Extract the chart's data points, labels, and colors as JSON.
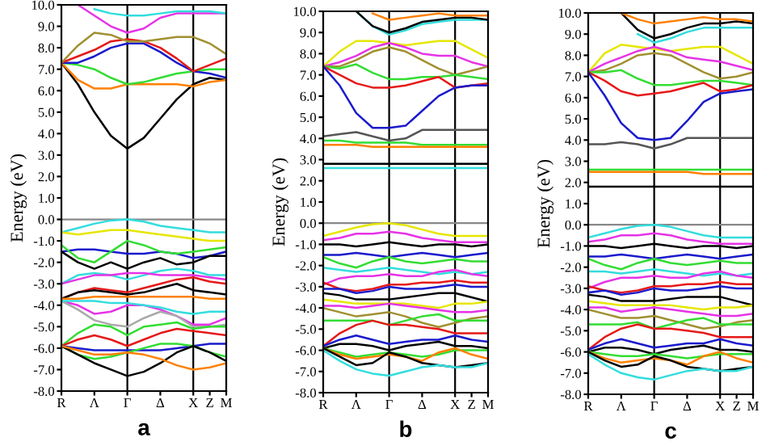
{
  "chart_data": [
    {
      "type": "line",
      "xlabel": "a",
      "ylabel": "Energy (eV)",
      "line_style": "solid",
      "categories": [
        "R",
        null,
        "Λ",
        null,
        "Γ",
        null,
        "Δ",
        null,
        "X",
        "Z",
        "M"
      ],
      "ylim": [
        -8,
        10
      ],
      "yticks": [
        {
          "value": -8,
          "label": "-8.0"
        },
        {
          "value": -7,
          "label": "-7.0"
        },
        {
          "value": -6,
          "label": "-6.0"
        },
        {
          "value": -5,
          "label": "-5.0"
        },
        {
          "value": -4,
          "label": "-4.0"
        },
        {
          "value": -3,
          "label": "-3.0"
        },
        {
          "value": -2,
          "label": "-2.0"
        },
        {
          "value": -1,
          "label": "-1.0"
        },
        {
          "value": 0,
          "label": "0.0"
        },
        {
          "value": 1,
          "label": "1.0"
        },
        {
          "value": 2,
          "label": "2.0"
        },
        {
          "value": 3,
          "label": "3.0"
        },
        {
          "value": 4,
          "label": "4.0"
        },
        {
          "value": 5,
          "label": "5.0"
        },
        {
          "value": 6,
          "label": "6.0"
        },
        {
          "value": 7,
          "label": "7.0"
        },
        {
          "value": 8,
          "label": "8.0"
        },
        {
          "value": 9,
          "label": "9.0"
        },
        {
          "value": 10,
          "label": "10.0"
        }
      ],
      "ref_lines": [
        {
          "axis": "x",
          "value": "Γ",
          "color": "#000000"
        },
        {
          "axis": "x",
          "value": "X",
          "color": "#000000"
        },
        {
          "axis": "y",
          "value": 0,
          "color": "#888888"
        }
      ],
      "series": [
        {
          "color": "#000000",
          "values": [
            7.3,
            6.3,
            5.0,
            3.9,
            3.3,
            3.8,
            4.7,
            5.6,
            6.3,
            6.6,
            6.5
          ]
        },
        {
          "color": "#ff8000",
          "values": [
            7.3,
            6.5,
            6.1,
            6.1,
            6.3,
            6.3,
            6.3,
            6.3,
            6.2,
            6.4,
            6.5
          ]
        },
        {
          "color": "#33dd33",
          "values": [
            7.3,
            7.2,
            7.0,
            6.6,
            6.3,
            6.4,
            6.6,
            6.8,
            6.9,
            7.0,
            7.0
          ]
        },
        {
          "color": "#1a1acc",
          "values": [
            7.3,
            7.3,
            7.6,
            8.0,
            8.2,
            8.2,
            7.8,
            7.3,
            6.9,
            6.8,
            6.6
          ]
        },
        {
          "color": "#e61919",
          "values": [
            7.3,
            7.6,
            7.9,
            8.3,
            8.4,
            8.3,
            8.0,
            7.5,
            6.9,
            7.2,
            7.5
          ]
        },
        {
          "color": "#a09030",
          "values": [
            7.3,
            8.1,
            8.7,
            8.6,
            8.3,
            8.3,
            8.4,
            8.5,
            8.5,
            8.2,
            7.7
          ]
        },
        {
          "color": "#e633e6",
          "values": [
            null,
            10.0,
            9.5,
            9.0,
            8.7,
            8.9,
            9.4,
            9.6,
            9.6,
            9.6,
            9.6
          ]
        },
        {
          "color": "#33dddd",
          "values": [
            null,
            null,
            9.8,
            9.6,
            9.5,
            9.5,
            9.6,
            9.7,
            9.7,
            9.7,
            9.6
          ]
        },
        {
          "color": "#33dddd",
          "values": [
            -0.6,
            -0.4,
            -0.2,
            -0.05,
            0.0,
            -0.1,
            -0.3,
            -0.4,
            -0.5,
            -0.6,
            -0.6
          ]
        },
        {
          "color": "#e6e600",
          "values": [
            -0.6,
            -0.7,
            -0.6,
            -0.5,
            -0.5,
            -0.6,
            -0.7,
            -0.8,
            -0.9,
            -1.0,
            -1.0
          ]
        },
        {
          "color": "#1a1acc",
          "values": [
            -1.5,
            -1.4,
            -1.4,
            -1.5,
            -1.6,
            -1.6,
            -1.5,
            -1.6,
            -1.8,
            -1.7,
            -1.5
          ]
        },
        {
          "color": "#000000",
          "values": [
            -1.5,
            -2.0,
            -2.3,
            -2.0,
            -2.3,
            -2.0,
            -1.8,
            -2.1,
            -2.0,
            -1.7,
            -1.7
          ]
        },
        {
          "color": "#33dd33",
          "values": [
            -1.2,
            -1.8,
            -2.0,
            -1.5,
            -1.0,
            -1.2,
            -1.5,
            -1.6,
            -1.5,
            -1.4,
            -1.3
          ]
        },
        {
          "color": "#33dddd",
          "values": [
            -3.0,
            -2.6,
            -2.5,
            -2.6,
            -2.8,
            -2.6,
            -2.4,
            -2.3,
            -2.4,
            -2.6,
            -2.6
          ]
        },
        {
          "color": "#e633e6",
          "values": [
            -3.0,
            -2.8,
            -2.6,
            -2.6,
            -2.5,
            -2.5,
            -2.6,
            -2.6,
            -2.6,
            -2.7,
            -2.8
          ]
        },
        {
          "color": "#e61919",
          "values": [
            -3.7,
            -3.4,
            -3.2,
            -3.3,
            -3.4,
            -3.2,
            -3.0,
            -2.8,
            -2.7,
            -2.9,
            -3.0
          ]
        },
        {
          "color": "#000000",
          "values": [
            -3.7,
            -3.4,
            -3.3,
            -3.4,
            -3.5,
            -3.4,
            -3.2,
            -3.0,
            -3.3,
            -3.4,
            -3.5
          ]
        },
        {
          "color": "#ff8000",
          "values": [
            -3.7,
            -3.7,
            -3.6,
            -3.6,
            -3.6,
            -3.6,
            -3.6,
            -3.6,
            -3.6,
            -3.7,
            -3.7
          ]
        },
        {
          "color": "#e633e6",
          "values": [
            -3.8,
            -4.0,
            -4.4,
            -4.3,
            -4.0,
            -4.0,
            -4.2,
            -4.5,
            -4.9,
            -4.9,
            -4.6
          ]
        },
        {
          "color": "#aaaaaa",
          "values": [
            -3.8,
            -4.2,
            -4.7,
            -4.9,
            -5.0,
            -4.6,
            -4.3,
            -4.5,
            -5.0,
            -5.0,
            -4.9
          ]
        },
        {
          "color": "#33dddd",
          "values": [
            -3.8,
            -3.8,
            -3.8,
            -3.9,
            -3.9,
            -4.0,
            -4.1,
            -4.3,
            -4.4,
            -4.3,
            -4.3
          ]
        },
        {
          "color": "#33dd33",
          "values": [
            -5.9,
            -5.3,
            -4.9,
            -5.0,
            -5.4,
            -5.0,
            -4.9,
            -4.8,
            -5.1,
            -5.0,
            -5.0
          ]
        },
        {
          "color": "#e61919",
          "values": [
            -5.9,
            -5.6,
            -5.4,
            -5.6,
            -5.9,
            -5.6,
            -5.3,
            -5.1,
            -5.2,
            -5.3,
            -5.4
          ]
        },
        {
          "color": "#1a1acc",
          "values": [
            -5.9,
            -6.0,
            -6.1,
            -6.1,
            -6.1,
            -6.1,
            -6.1,
            -6.0,
            -5.9,
            -5.8,
            -5.8
          ]
        },
        {
          "color": "#33dd33",
          "values": [
            -5.9,
            -6.3,
            -6.5,
            -6.4,
            -6.2,
            -6.0,
            -5.8,
            -5.8,
            -5.9,
            -6.2,
            -6.4
          ]
        },
        {
          "color": "#000000",
          "values": [
            -5.9,
            -6.3,
            -6.7,
            -7.0,
            -7.3,
            -7.1,
            -6.7,
            -6.2,
            -5.9,
            -6.2,
            -6.6
          ]
        },
        {
          "color": "#ff8000",
          "values": [
            -5.9,
            -6.1,
            -6.3,
            -6.3,
            -6.2,
            -6.3,
            -6.5,
            -6.8,
            -7.0,
            -6.9,
            -6.7
          ]
        }
      ]
    },
    {
      "type": "line",
      "xlabel": "b",
      "ylabel": "Energy (eV)",
      "line_style": "solid",
      "categories": [
        "R",
        null,
        "Λ",
        null,
        "Γ",
        null,
        "Δ",
        null,
        "X",
        "Z",
        "M"
      ],
      "ylim": [
        -8,
        10
      ],
      "yticks": [
        {
          "value": -8,
          "label": "-8.0"
        },
        {
          "value": -7,
          "label": "-7.0"
        },
        {
          "value": -6,
          "label": "-6.0"
        },
        {
          "value": -5,
          "label": "-5.0"
        },
        {
          "value": -4,
          "label": "-4.0"
        },
        {
          "value": -3,
          "label": "-3.0"
        },
        {
          "value": -2,
          "label": "-2.0"
        },
        {
          "value": -1,
          "label": "-1.0"
        },
        {
          "value": 0,
          "label": "0.0"
        },
        {
          "value": 1,
          "label": "1.0"
        },
        {
          "value": 2,
          "label": "2.0"
        },
        {
          "value": 3,
          "label": "3.0"
        },
        {
          "value": 4,
          "label": "4.0"
        },
        {
          "value": 5,
          "label": "5.0"
        },
        {
          "value": 6,
          "label": "6.0"
        },
        {
          "value": 7,
          "label": "7.0"
        },
        {
          "value": 8,
          "label": "8.0"
        },
        {
          "value": 9,
          "label": "9.0"
        },
        {
          "value": 10,
          "label": "10.0"
        }
      ],
      "ref_lines": [
        {
          "axis": "x",
          "value": "Γ",
          "color": "#000000"
        },
        {
          "axis": "x",
          "value": "X",
          "color": "#000000"
        },
        {
          "axis": "y",
          "value": 0,
          "color": "#888888"
        }
      ],
      "series": [
        {
          "color": "#33dddd",
          "values": [
            null,
            null,
            10.0,
            9.3,
            8.9,
            9.1,
            9.4,
            9.5,
            9.6,
            9.6,
            9.6
          ]
        },
        {
          "color": "#000000",
          "values": [
            null,
            null,
            10.0,
            9.3,
            9.0,
            9.2,
            9.5,
            9.6,
            9.7,
            9.7,
            9.6
          ]
        },
        {
          "color": "#ff8000",
          "values": [
            null,
            null,
            null,
            9.9,
            9.6,
            9.7,
            9.8,
            9.9,
            9.8,
            9.8,
            9.8
          ]
        },
        {
          "color": "#e6e600",
          "values": [
            7.4,
            8.1,
            8.6,
            8.6,
            8.5,
            8.4,
            8.5,
            8.6,
            8.6,
            8.2,
            7.8
          ]
        },
        {
          "color": "#e633e6",
          "values": [
            7.4,
            7.6,
            7.9,
            8.3,
            8.5,
            8.3,
            8.0,
            7.9,
            7.9,
            7.6,
            7.4
          ]
        },
        {
          "color": "#a09030",
          "values": [
            7.4,
            7.4,
            7.7,
            8.1,
            8.3,
            8.1,
            7.7,
            7.3,
            7.0,
            7.2,
            7.4
          ]
        },
        {
          "color": "#33dd33",
          "values": [
            7.4,
            7.3,
            7.5,
            7.1,
            6.8,
            6.8,
            6.9,
            6.9,
            7.0,
            6.9,
            6.8
          ]
        },
        {
          "color": "#e61919",
          "values": [
            7.4,
            7.0,
            6.6,
            6.4,
            6.4,
            6.5,
            6.7,
            6.9,
            6.4,
            6.5,
            6.6
          ]
        },
        {
          "color": "#1a1acc",
          "values": [
            7.4,
            6.5,
            5.2,
            4.5,
            4.5,
            4.6,
            5.3,
            6.0,
            6.4,
            6.5,
            6.5
          ]
        },
        {
          "color": "#555555",
          "values": [
            4.1,
            4.2,
            4.3,
            4.1,
            3.9,
            4.0,
            4.4,
            4.4,
            4.4,
            4.4,
            4.4
          ]
        },
        {
          "color": "#33dd33",
          "values": [
            3.9,
            3.9,
            3.8,
            3.8,
            3.8,
            3.8,
            3.7,
            3.7,
            3.7,
            3.7,
            3.7
          ]
        },
        {
          "color": "#ff8000",
          "values": [
            3.7,
            3.7,
            3.7,
            3.6,
            3.6,
            3.6,
            3.6,
            3.6,
            3.6,
            3.6,
            3.6
          ]
        },
        {
          "color": "#000000",
          "values": [
            2.8,
            2.8,
            2.8,
            2.8,
            2.8,
            2.8,
            2.8,
            2.8,
            2.8,
            2.8,
            2.8
          ]
        },
        {
          "color": "#33dddd",
          "values": [
            2.6,
            2.6,
            2.6,
            2.6,
            2.6,
            2.6,
            2.6,
            2.6,
            2.6,
            2.6,
            2.6
          ]
        },
        {
          "color": "#e6e600",
          "values": [
            -0.6,
            -0.4,
            -0.2,
            -0.05,
            0.0,
            -0.1,
            -0.3,
            -0.5,
            -0.6,
            -0.6,
            -0.6
          ]
        },
        {
          "color": "#e633e6",
          "values": [
            -0.8,
            -0.7,
            -0.5,
            -0.5,
            -0.4,
            -0.5,
            -0.7,
            -0.8,
            -0.9,
            -0.9,
            -0.9
          ]
        },
        {
          "color": "#000000",
          "values": [
            -1.0,
            -1.0,
            -1.1,
            -1.0,
            -0.9,
            -1.0,
            -1.1,
            -1.0,
            -1.0,
            -1.1,
            -1.0
          ]
        },
        {
          "color": "#1a1acc",
          "values": [
            -1.5,
            -1.5,
            -1.4,
            -1.5,
            -1.6,
            -1.5,
            -1.4,
            -1.5,
            -1.6,
            -1.5,
            -1.4
          ]
        },
        {
          "color": "#33dd33",
          "values": [
            -1.6,
            -1.9,
            -2.1,
            -1.8,
            -1.6,
            -1.8,
            -1.9,
            -1.8,
            -1.7,
            -1.8,
            -1.8
          ]
        },
        {
          "color": "#33dddd",
          "values": [
            -2.1,
            -2.2,
            -2.3,
            -2.2,
            -2.1,
            -2.2,
            -2.3,
            -2.4,
            -2.3,
            -2.4,
            -2.3
          ]
        },
        {
          "color": "#e633e6",
          "values": [
            -2.9,
            -2.6,
            -2.5,
            -2.5,
            -2.4,
            -2.5,
            -2.5,
            -2.3,
            -2.2,
            -2.4,
            -2.5
          ]
        },
        {
          "color": "#e61919",
          "values": [
            -2.8,
            -3.1,
            -3.2,
            -3.1,
            -2.9,
            -2.9,
            -2.8,
            -2.8,
            -2.7,
            -2.8,
            -2.8
          ]
        },
        {
          "color": "#1a1acc",
          "values": [
            -3.1,
            -3.1,
            -3.3,
            -3.2,
            -3.0,
            -3.1,
            -3.1,
            -3.0,
            -2.9,
            -3.0,
            -3.0
          ]
        },
        {
          "color": "#000000",
          "values": [
            -3.3,
            -3.4,
            -3.6,
            -3.6,
            -3.6,
            -3.5,
            -3.4,
            -3.3,
            -3.3,
            -3.5,
            -3.7
          ]
        },
        {
          "color": "#e6e600",
          "values": [
            -3.6,
            -3.7,
            -3.8,
            -3.8,
            -3.8,
            -3.8,
            -3.9,
            -4.0,
            -3.8,
            -3.8,
            -3.7
          ]
        },
        {
          "color": "#e633e6",
          "values": [
            -3.9,
            -3.9,
            -4.0,
            -3.9,
            -3.8,
            -3.9,
            -4.0,
            -4.1,
            -4.2,
            -4.2,
            -4.1
          ]
        },
        {
          "color": "#a09030",
          "values": [
            -4.0,
            -4.2,
            -4.4,
            -4.3,
            -4.2,
            -4.4,
            -4.7,
            -4.9,
            -4.7,
            -4.5,
            -4.4
          ]
        },
        {
          "color": "#33dd33",
          "values": [
            -4.6,
            -4.6,
            -4.6,
            -4.6,
            -4.8,
            -4.6,
            -4.4,
            -4.3,
            -4.6,
            -4.6,
            -4.6
          ]
        },
        {
          "color": "#e61919",
          "values": [
            -5.8,
            -5.2,
            -4.8,
            -4.6,
            -4.8,
            -4.8,
            -4.9,
            -5.0,
            -5.2,
            -5.2,
            -5.2
          ]
        },
        {
          "color": "#1a1acc",
          "values": [
            -5.8,
            -5.5,
            -5.3,
            -5.5,
            -5.7,
            -5.6,
            -5.5,
            -5.5,
            -5.3,
            -5.5,
            -5.6
          ]
        },
        {
          "color": "#000000",
          "values": [
            -5.9,
            -5.7,
            -5.7,
            -5.8,
            -6.0,
            -5.8,
            -5.7,
            -5.6,
            -5.8,
            -5.8,
            -5.9
          ]
        },
        {
          "color": "#33dd33",
          "values": [
            -5.9,
            -6.1,
            -6.3,
            -6.2,
            -6.1,
            -6.2,
            -6.3,
            -6.2,
            -6.0,
            -6.0,
            -6.0
          ]
        },
        {
          "color": "#ff8000",
          "values": [
            -5.9,
            -6.2,
            -6.4,
            -6.3,
            -6.2,
            -6.3,
            -6.5,
            -6.1,
            -5.9,
            -6.2,
            -6.4
          ]
        },
        {
          "color": "#000000",
          "values": [
            -5.9,
            -6.3,
            -6.7,
            -6.6,
            -6.1,
            -6.3,
            -6.6,
            -6.7,
            -6.8,
            -6.7,
            -6.6
          ]
        },
        {
          "color": "#33dddd",
          "values": [
            -6.0,
            -6.5,
            -6.9,
            -7.1,
            -7.2,
            -7.0,
            -6.8,
            -6.7,
            -6.8,
            -6.8,
            -6.6
          ]
        }
      ]
    },
    {
      "type": "line",
      "xlabel": "c",
      "ylabel": "Energy (eV)",
      "line_style": "solid",
      "categories": [
        "R",
        null,
        "Λ",
        null,
        "Γ",
        null,
        "Δ",
        null,
        "X",
        "Z",
        "M"
      ],
      "ylim": [
        -8,
        10
      ],
      "yticks": [
        {
          "value": -8,
          "label": "-8.0"
        },
        {
          "value": -7,
          "label": "-7.0"
        },
        {
          "value": -6,
          "label": "-6.0"
        },
        {
          "value": -5,
          "label": "-5.0"
        },
        {
          "value": -4,
          "label": "-4.0"
        },
        {
          "value": -3,
          "label": "-3.0"
        },
        {
          "value": -2,
          "label": "-2.0"
        },
        {
          "value": -1,
          "label": "-1.0"
        },
        {
          "value": 0,
          "label": "0.0"
        },
        {
          "value": 1,
          "label": "1.0"
        },
        {
          "value": 2,
          "label": "2.0"
        },
        {
          "value": 3,
          "label": "3.0"
        },
        {
          "value": 4,
          "label": "4.0"
        },
        {
          "value": 5,
          "label": "5.0"
        },
        {
          "value": 6,
          "label": "6.0"
        },
        {
          "value": 7,
          "label": "7.0"
        },
        {
          "value": 8,
          "label": "8.0"
        },
        {
          "value": 9,
          "label": "9.0"
        },
        {
          "value": 10,
          "label": "10.0"
        }
      ],
      "ref_lines": [
        {
          "axis": "x",
          "value": "Γ",
          "color": "#000000"
        },
        {
          "axis": "x",
          "value": "X",
          "color": "#000000"
        },
        {
          "axis": "y",
          "value": 0,
          "color": "#888888"
        }
      ],
      "series": [
        {
          "color": "#33dddd",
          "values": [
            null,
            null,
            null,
            9.0,
            8.6,
            8.8,
            9.1,
            9.3,
            9.3,
            9.3,
            9.3
          ]
        },
        {
          "color": "#000000",
          "values": [
            null,
            null,
            10.0,
            9.2,
            8.8,
            9.0,
            9.3,
            9.5,
            9.5,
            9.6,
            9.5
          ]
        },
        {
          "color": "#ff8000",
          "values": [
            null,
            null,
            10.0,
            9.7,
            9.5,
            9.6,
            9.7,
            9.8,
            9.7,
            9.7,
            9.6
          ]
        },
        {
          "color": "#e6e600",
          "values": [
            7.2,
            8.1,
            8.5,
            8.4,
            8.3,
            8.2,
            8.3,
            8.4,
            8.4,
            8.0,
            7.6
          ]
        },
        {
          "color": "#e633e6",
          "values": [
            7.2,
            7.6,
            7.9,
            8.2,
            8.4,
            8.2,
            7.9,
            7.8,
            7.7,
            7.5,
            7.3
          ]
        },
        {
          "color": "#a09030",
          "values": [
            7.2,
            7.3,
            7.6,
            8.0,
            8.1,
            8.0,
            7.6,
            7.2,
            6.9,
            7.0,
            7.2
          ]
        },
        {
          "color": "#33dd33",
          "values": [
            7.2,
            7.2,
            7.3,
            6.9,
            6.6,
            6.6,
            6.7,
            6.8,
            6.8,
            6.7,
            6.6
          ]
        },
        {
          "color": "#e61919",
          "values": [
            7.2,
            6.8,
            6.3,
            6.1,
            6.2,
            6.3,
            6.5,
            6.7,
            6.3,
            6.4,
            6.6
          ]
        },
        {
          "color": "#1a1acc",
          "values": [
            7.2,
            6.1,
            4.8,
            4.1,
            4.0,
            4.1,
            4.9,
            5.8,
            6.2,
            6.3,
            6.4
          ]
        },
        {
          "color": "#555555",
          "values": [
            3.8,
            3.8,
            3.9,
            3.8,
            3.6,
            3.8,
            4.1,
            4.1,
            4.1,
            4.1,
            4.1
          ]
        },
        {
          "color": "#33dd33",
          "values": [
            2.6,
            2.6,
            2.6,
            2.6,
            2.6,
            2.6,
            2.6,
            2.6,
            2.6,
            2.6,
            2.6
          ]
        },
        {
          "color": "#ff8000",
          "values": [
            2.5,
            2.5,
            2.5,
            2.5,
            2.5,
            2.5,
            2.5,
            2.4,
            2.4,
            2.4,
            2.4
          ]
        },
        {
          "color": "#000000",
          "values": [
            1.8,
            1.8,
            1.8,
            1.8,
            1.8,
            1.8,
            1.8,
            1.8,
            1.8,
            1.8,
            1.8
          ]
        },
        {
          "color": "#33dddd",
          "values": [
            -0.6,
            -0.4,
            -0.2,
            -0.05,
            0.0,
            -0.1,
            -0.3,
            -0.5,
            -0.6,
            -0.6,
            -0.6
          ]
        },
        {
          "color": "#e633e6",
          "values": [
            -0.8,
            -0.7,
            -0.5,
            -0.5,
            -0.4,
            -0.5,
            -0.7,
            -0.8,
            -0.9,
            -0.9,
            -0.9
          ]
        },
        {
          "color": "#000000",
          "values": [
            -1.0,
            -1.0,
            -1.1,
            -1.0,
            -0.9,
            -1.0,
            -1.1,
            -1.0,
            -1.0,
            -1.1,
            -1.0
          ]
        },
        {
          "color": "#1a1acc",
          "values": [
            -1.5,
            -1.5,
            -1.4,
            -1.5,
            -1.6,
            -1.5,
            -1.4,
            -1.5,
            -1.6,
            -1.5,
            -1.4
          ]
        },
        {
          "color": "#33dd33",
          "values": [
            -1.6,
            -1.9,
            -2.1,
            -1.8,
            -1.6,
            -1.8,
            -1.9,
            -1.8,
            -1.7,
            -1.8,
            -1.8
          ]
        },
        {
          "color": "#33dddd",
          "values": [
            -2.2,
            -2.2,
            -2.3,
            -2.2,
            -2.1,
            -2.2,
            -2.3,
            -2.4,
            -2.3,
            -2.4,
            -2.3
          ]
        },
        {
          "color": "#e633e6",
          "values": [
            -3.0,
            -2.7,
            -2.5,
            -2.5,
            -2.4,
            -2.5,
            -2.5,
            -2.3,
            -2.2,
            -2.4,
            -2.5
          ]
        },
        {
          "color": "#e61919",
          "values": [
            -2.9,
            -3.1,
            -3.2,
            -3.1,
            -2.9,
            -2.9,
            -2.8,
            -2.8,
            -2.7,
            -2.8,
            -2.8
          ]
        },
        {
          "color": "#1a1acc",
          "values": [
            -3.2,
            -3.1,
            -3.3,
            -3.2,
            -3.0,
            -3.1,
            -3.1,
            -3.0,
            -2.9,
            -3.0,
            -3.0
          ]
        },
        {
          "color": "#000000",
          "values": [
            -3.3,
            -3.4,
            -3.6,
            -3.6,
            -3.6,
            -3.5,
            -3.4,
            -3.4,
            -3.4,
            -3.6,
            -3.8
          ]
        },
        {
          "color": "#e6e600",
          "values": [
            -3.6,
            -3.7,
            -3.8,
            -3.8,
            -3.8,
            -3.8,
            -3.9,
            -4.0,
            -3.9,
            -3.9,
            -3.8
          ]
        },
        {
          "color": "#e633e6",
          "values": [
            -3.9,
            -3.9,
            -4.1,
            -4.0,
            -3.9,
            -4.0,
            -4.1,
            -4.2,
            -4.3,
            -4.3,
            -4.2
          ]
        },
        {
          "color": "#a09030",
          "values": [
            -4.0,
            -4.2,
            -4.4,
            -4.4,
            -4.3,
            -4.5,
            -4.7,
            -4.9,
            -4.8,
            -4.6,
            -4.5
          ]
        },
        {
          "color": "#33dd33",
          "values": [
            -4.7,
            -4.7,
            -4.7,
            -4.6,
            -4.9,
            -4.7,
            -4.5,
            -4.4,
            -4.7,
            -4.7,
            -4.7
          ]
        },
        {
          "color": "#e61919",
          "values": [
            -5.9,
            -5.3,
            -4.9,
            -4.7,
            -4.9,
            -4.9,
            -5.0,
            -5.1,
            -5.3,
            -5.3,
            -5.3
          ]
        },
        {
          "color": "#1a1acc",
          "values": [
            -5.9,
            -5.6,
            -5.4,
            -5.6,
            -5.8,
            -5.7,
            -5.6,
            -5.6,
            -5.4,
            -5.6,
            -5.7
          ]
        },
        {
          "color": "#000000",
          "values": [
            -6.0,
            -5.8,
            -5.8,
            -5.9,
            -6.1,
            -5.9,
            -5.8,
            -5.7,
            -5.9,
            -5.9,
            -6.0
          ]
        },
        {
          "color": "#33dd33",
          "values": [
            -6.0,
            -6.1,
            -6.2,
            -6.2,
            -6.1,
            -6.2,
            -6.3,
            -6.2,
            -6.1,
            -6.1,
            -6.1
          ]
        },
        {
          "color": "#ff8000",
          "values": [
            -6.0,
            -6.3,
            -6.5,
            -6.4,
            -6.3,
            -6.4,
            -6.6,
            -6.2,
            -6.0,
            -6.3,
            -6.5
          ]
        },
        {
          "color": "#000000",
          "values": [
            -6.0,
            -6.4,
            -6.7,
            -6.6,
            -6.2,
            -6.4,
            -6.7,
            -6.8,
            -6.9,
            -6.8,
            -6.7
          ]
        },
        {
          "color": "#33dddd",
          "values": [
            -6.1,
            -6.6,
            -7.0,
            -7.2,
            -7.3,
            -7.1,
            -6.9,
            -6.8,
            -6.9,
            -6.9,
            -6.7
          ]
        }
      ]
    }
  ]
}
